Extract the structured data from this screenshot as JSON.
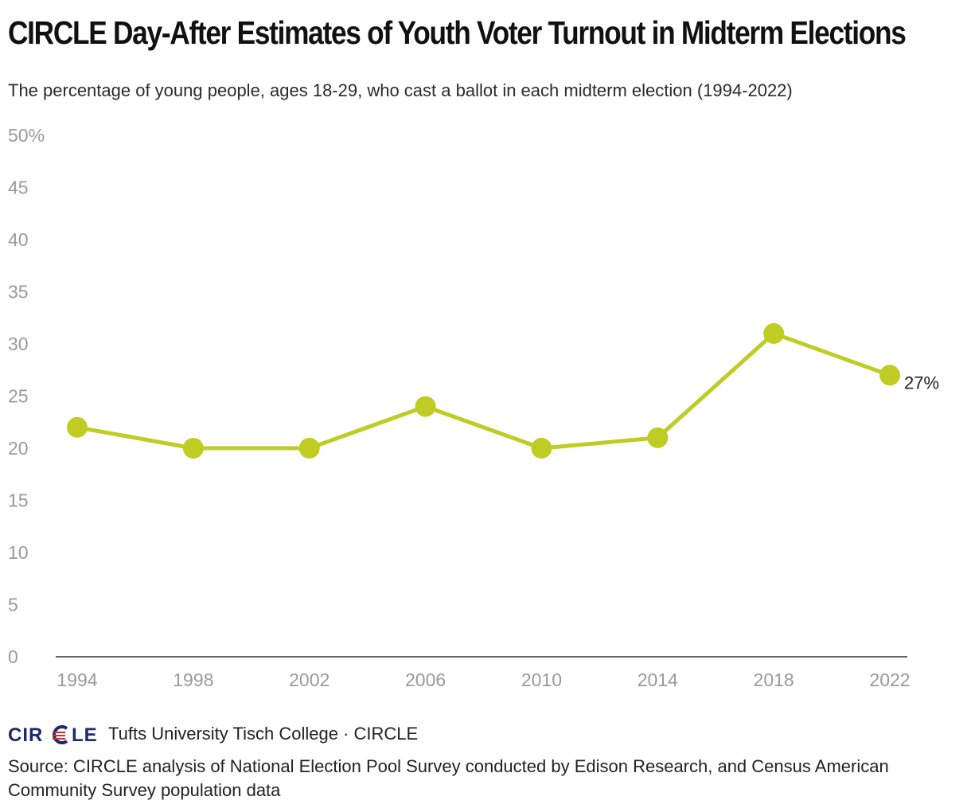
{
  "title": "CIRCLE Day-After Estimates of Youth Voter Turnout in Midterm Elections",
  "subtitle": "The percentage of young people, ages 18-29, who cast a ballot in each midterm election (1994-2022)",
  "footer": {
    "logo_text": "CIRCLE",
    "attribution": "Tufts University Tisch College · CIRCLE",
    "source": "Source: CIRCLE analysis of National Election Pool Survey conducted by Edison Research, and Census American Community Survey population data"
  },
  "colors": {
    "line": "#bfcc23",
    "tick_label": "#9a9a9a",
    "axis": "#333333",
    "logo_navy": "#1b2a6b",
    "logo_red": "#c8323c"
  },
  "chart_data": {
    "type": "line",
    "title": "CIRCLE Day-After Estimates of Youth Voter Turnout in Midterm Elections",
    "subtitle": "The percentage of young people, ages 18-29, who cast a ballot in each midterm election (1994-2022)",
    "categories": [
      "1994",
      "1998",
      "2002",
      "2006",
      "2010",
      "2014",
      "2018",
      "2022"
    ],
    "series": [
      {
        "values": [
          22,
          20,
          20,
          24,
          20,
          21,
          31,
          27
        ]
      }
    ],
    "ylim": [
      0,
      50
    ],
    "yticks": [
      0,
      5,
      10,
      15,
      20,
      25,
      30,
      35,
      40,
      45,
      50
    ],
    "ytick_labels": [
      "0",
      "5",
      "10",
      "15",
      "20",
      "25",
      "30",
      "35",
      "40",
      "45",
      "50%"
    ],
    "end_label": "27%",
    "xlabel": "",
    "ylabel": "",
    "grid": false,
    "markers": true
  }
}
